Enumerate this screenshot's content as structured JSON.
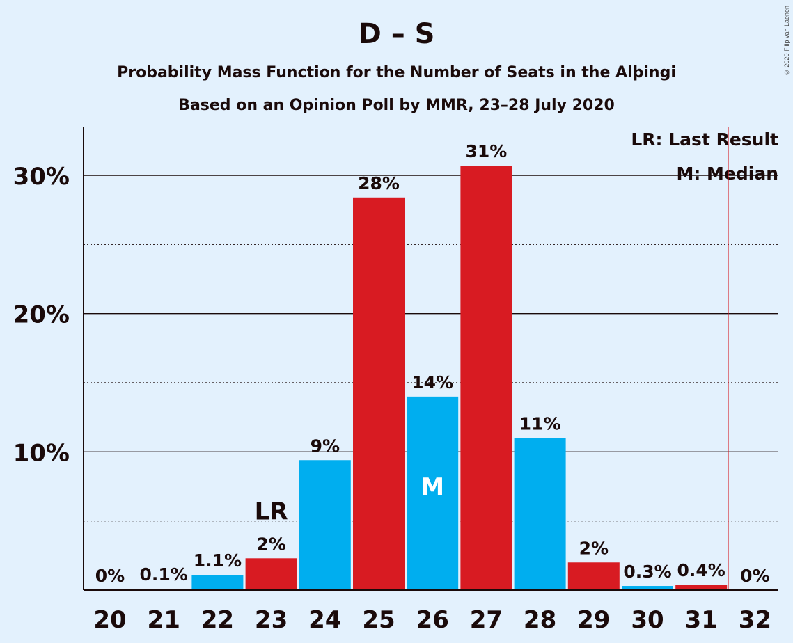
{
  "title": "D – S",
  "subtitle1": "Probability Mass Function for the Number of Seats in the Alþingi",
  "subtitle2": "Based on an Opinion Poll by MMR, 23–28 July 2020",
  "copyright": "© 2020 Filip van Laenen",
  "legend": {
    "lr": "LR: Last Result",
    "m": "M: Median"
  },
  "colors": {
    "red": "#d81b22",
    "blue": "#00aeef",
    "background": "#e3f1fd",
    "text": "#1a0a0a",
    "lastResultLine": "#d81b22"
  },
  "chart_data": {
    "type": "bar",
    "categories": [
      "20",
      "21",
      "22",
      "23",
      "24",
      "25",
      "26",
      "27",
      "28",
      "29",
      "30",
      "31",
      "32"
    ],
    "values": [
      0,
      0.1,
      1.1,
      2.3,
      9.4,
      28.4,
      14.0,
      30.7,
      11.0,
      2.0,
      0.3,
      0.4,
      0
    ],
    "data_labels": [
      "0%",
      "0.1%",
      "1.1%",
      "2%",
      "9%",
      "28%",
      "14%",
      "31%",
      "11%",
      "2%",
      "0.3%",
      "0.4%",
      "0%"
    ],
    "bar_colors": [
      "red",
      "blue",
      "blue",
      "red",
      "blue",
      "red",
      "blue",
      "red",
      "blue",
      "red",
      "blue",
      "red",
      "blue"
    ],
    "ylim": [
      0,
      33
    ],
    "yticks": [
      10,
      20,
      30
    ],
    "ytick_labels": [
      "10%",
      "20%",
      "30%"
    ],
    "minor_gridlines": [
      5,
      15,
      25
    ],
    "last_result_seat": "23",
    "last_result_label": "LR",
    "median_seat": "26",
    "median_label": "M",
    "majority_threshold_after": "31"
  }
}
